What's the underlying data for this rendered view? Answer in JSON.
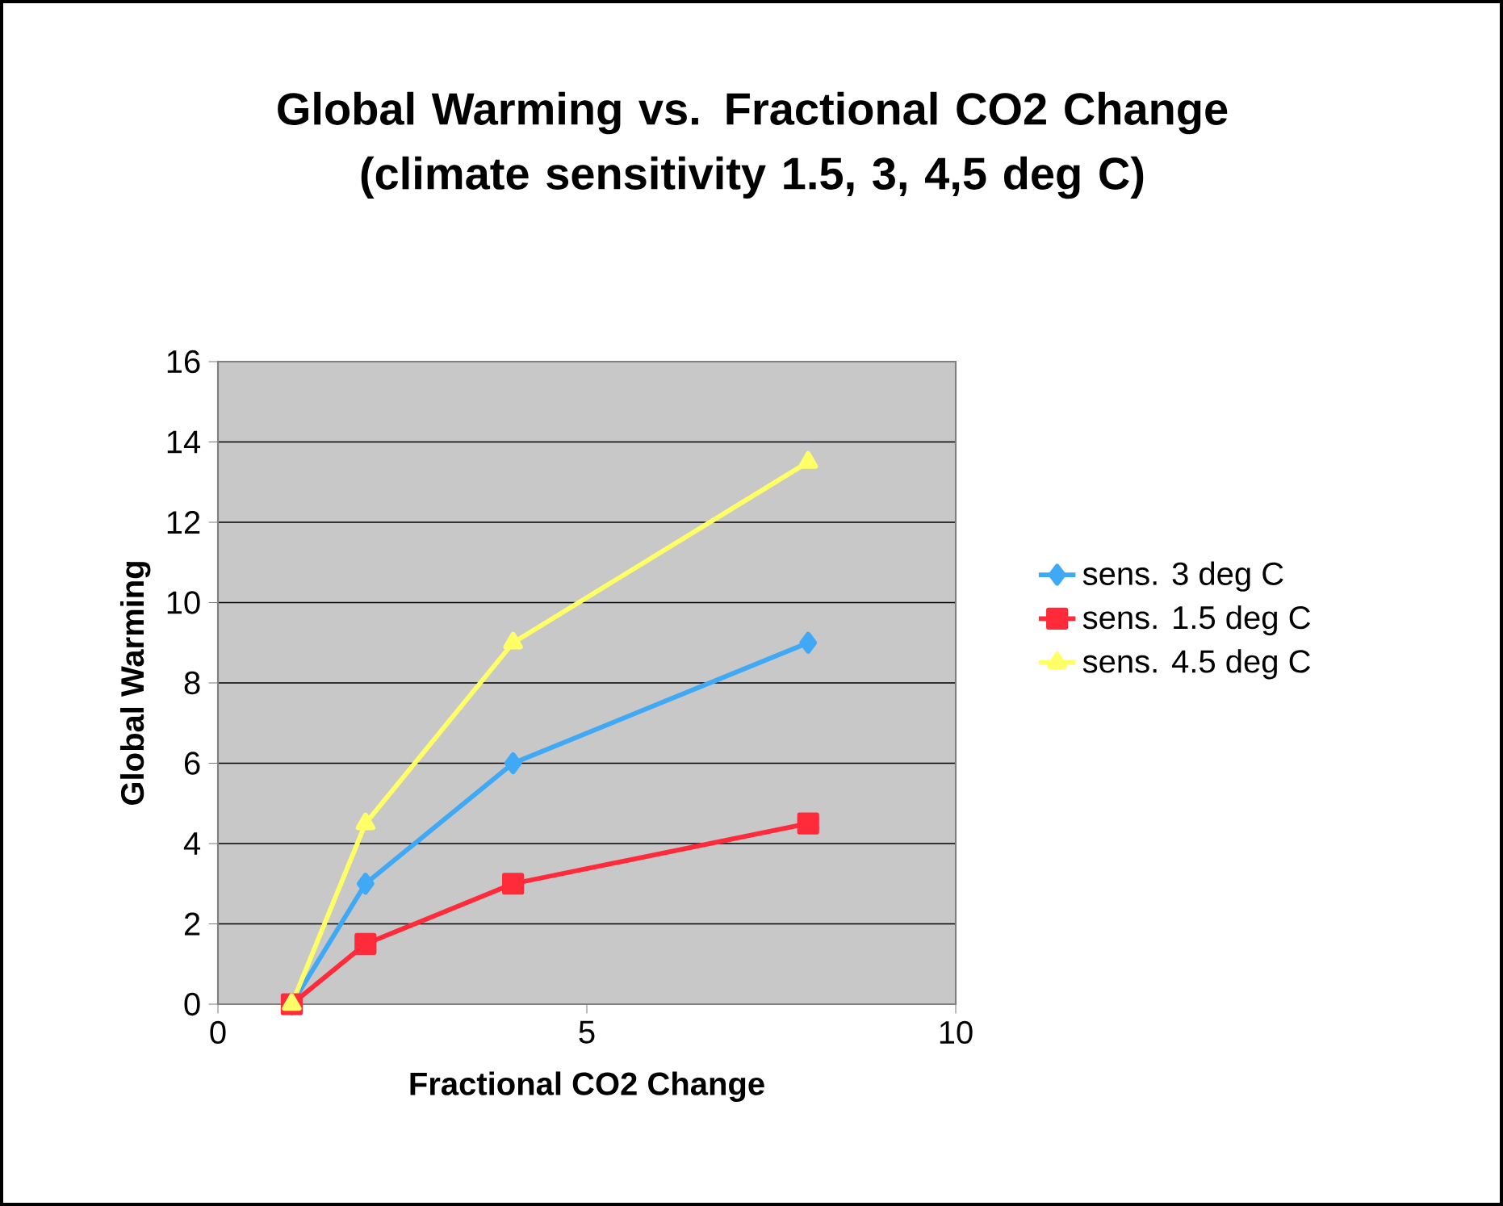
{
  "chart_data": {
    "type": "line",
    "title": "Global Warming vs. Fractional CO2 Change (climate sensitivity 1.5, 3, 4,5 deg C)",
    "xlabel": "Fractional CO2 Change",
    "ylabel": "Global Warming",
    "x": [
      1,
      2,
      4,
      8
    ],
    "series": [
      {
        "name": "sens. 3 deg C",
        "color": "#3fa9f5",
        "marker": "diamond",
        "values": [
          0,
          3,
          6,
          9
        ]
      },
      {
        "name": "sens. 1.5 deg C",
        "color": "#ff2a3a",
        "marker": "square",
        "values": [
          0,
          1.5,
          3,
          4.5
        ]
      },
      {
        "name": "sens. 4.5 deg C",
        "color": "#ffff66",
        "marker": "triangle",
        "values": [
          0,
          4.5,
          9,
          13.5
        ]
      }
    ],
    "xlim": [
      0,
      10
    ],
    "xticks": [
      0,
      5,
      10
    ],
    "ylim": [
      0,
      16
    ],
    "yticks": [
      0,
      2,
      4,
      6,
      8,
      10,
      12,
      14,
      16
    ],
    "grid": "y",
    "legend": "right",
    "line_style": "solid"
  }
}
